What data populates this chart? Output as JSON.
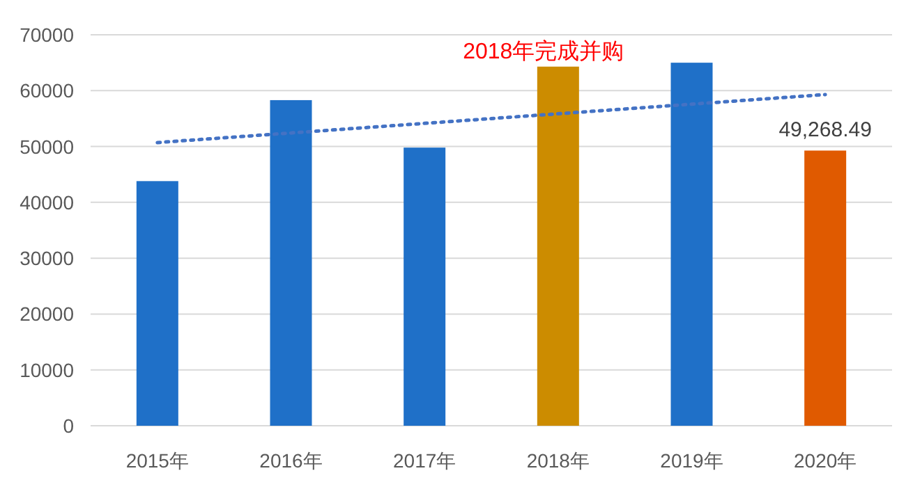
{
  "chart_data": {
    "type": "bar",
    "categories": [
      "2015年",
      "2016年",
      "2017年",
      "2018年",
      "2019年",
      "2020年"
    ],
    "series": [
      {
        "values": [
          43800,
          58300,
          49800,
          64300,
          65000,
          49268.49
        ],
        "colors": [
          "#1f70c8",
          "#1f70c8",
          "#1f70c8",
          "#cc8c00",
          "#1f70c8",
          "#e05a00"
        ],
        "value_labels": [
          null,
          null,
          null,
          null,
          null,
          "49,268.49"
        ]
      },
      {
        "type": "line",
        "x": [
          "2015年",
          "2020年"
        ],
        "values": [
          50700,
          59300
        ],
        "color": "#4472c4",
        "line_style": "dotted"
      }
    ],
    "annotations": [
      "2018年完成并购"
    ],
    "ylim": [
      0,
      70000
    ],
    "yticks": [
      0,
      10000,
      20000,
      30000,
      40000,
      50000,
      60000,
      70000
    ],
    "grid": "y"
  }
}
